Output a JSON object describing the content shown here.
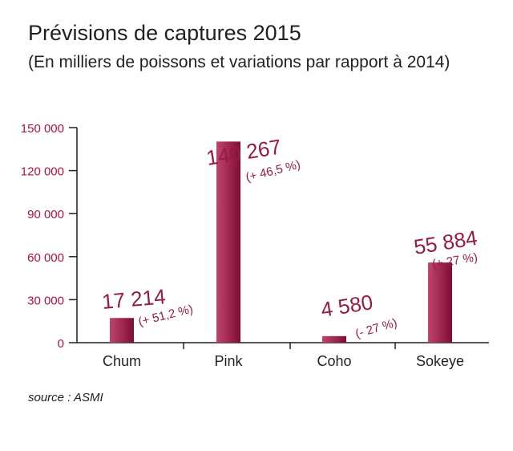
{
  "title": "Prévisions de captures 2015",
  "subtitle": "(En milliers de poissons et variations par rapport à 2014)",
  "source": "source : ASMI",
  "colors": {
    "bar_light": "#c0456c",
    "bar_dark": "#7e0d34",
    "axis_labels": "#b0123f",
    "data_labels": "#9a1a45",
    "axis": "#231f20"
  },
  "chart_data": {
    "type": "bar",
    "categories": [
      "Chum",
      "Pink",
      "Coho",
      "Sokeye"
    ],
    "values": [
      17214,
      140267,
      4580,
      55884
    ],
    "value_labels": [
      "17 214",
      "140 267",
      "4 580",
      "55 884"
    ],
    "change_labels": [
      "(+ 51,2 %)",
      "(+ 46,5 %)",
      "(- 27 %)",
      "(+ 27 %)"
    ],
    "y_ticks": [
      0,
      30000,
      60000,
      90000,
      120000,
      150000
    ],
    "y_tick_labels": [
      "0",
      "30 000",
      "60 000",
      "90 000",
      "120 000",
      "150 000"
    ],
    "ylim": [
      0,
      150000
    ],
    "grid": false,
    "legend": "none"
  }
}
